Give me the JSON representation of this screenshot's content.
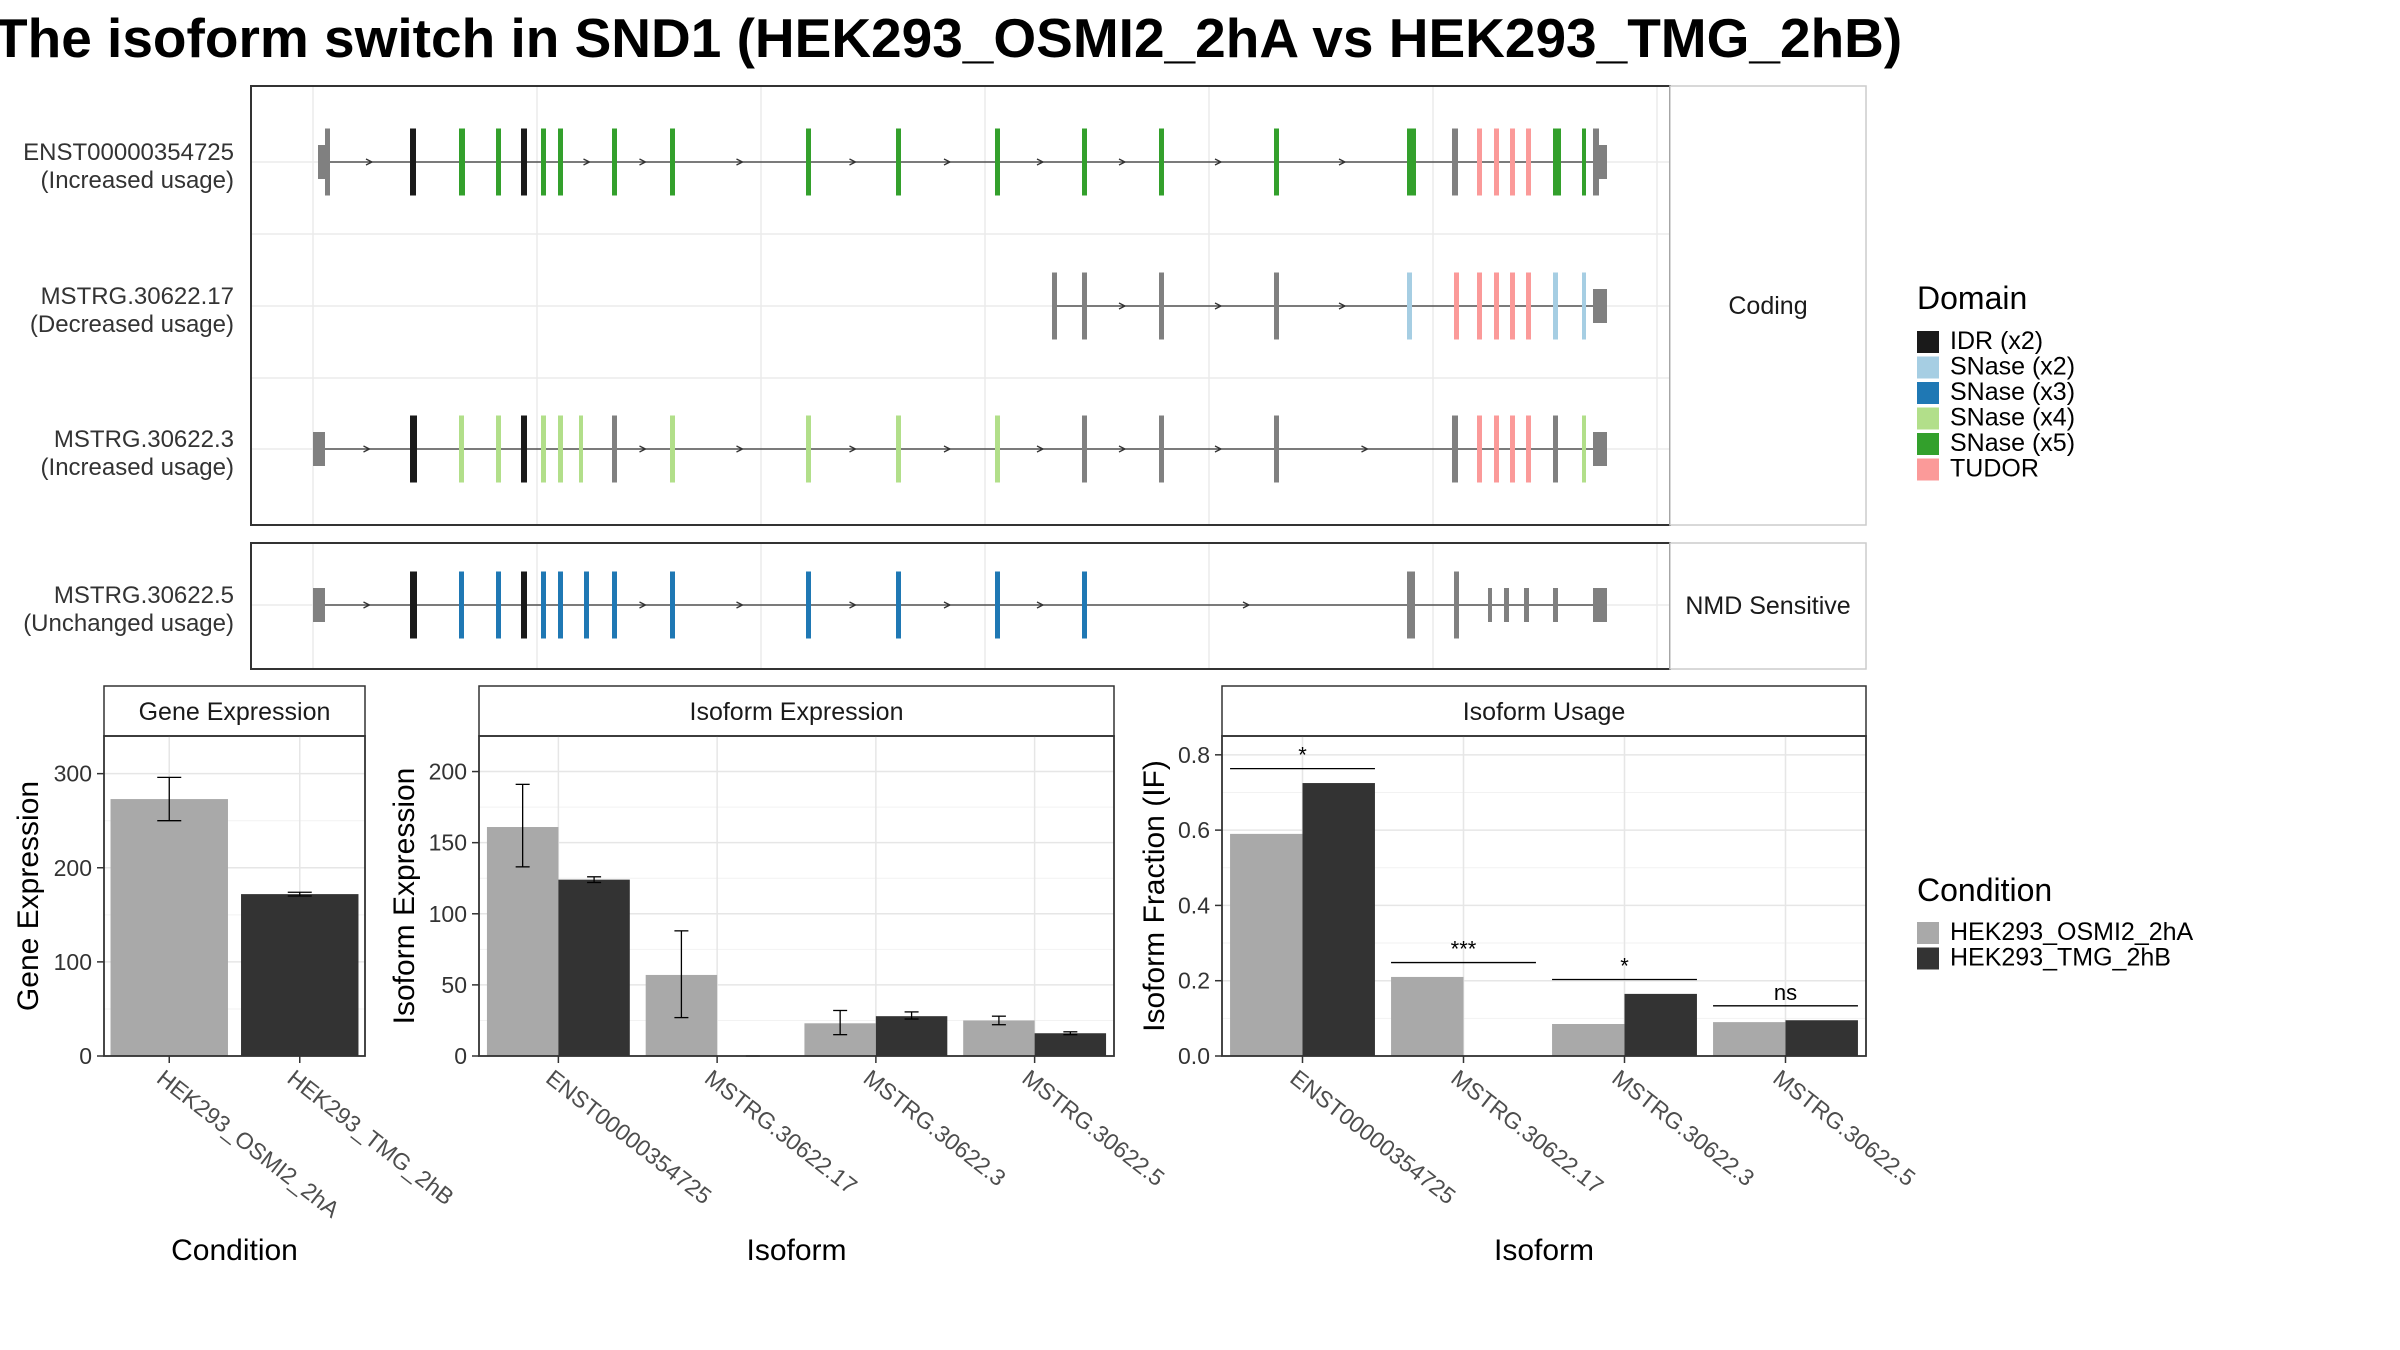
{
  "title": "The isoform switch in SND1 (HEK293_OSMI2_2hA vs HEK293_TMG_2hB)",
  "structure": {
    "isoforms": [
      {
        "id": "ENST00000354725",
        "usage": "(Increased usage)",
        "group": "Coding"
      },
      {
        "id": "MSTRG.30622.17",
        "usage": "(Decreased usage)",
        "group": "Coding"
      },
      {
        "id": "MSTRG.30622.3",
        "usage": "(Increased usage)",
        "group": "Coding"
      },
      {
        "id": "MSTRG.30622.5",
        "usage": "(Unchanged usage)",
        "group": "NMD Sensitive"
      }
    ],
    "strip_labels": [
      "Coding",
      "NMD Sensitive"
    ]
  },
  "legends": {
    "domain": {
      "title": "Domain",
      "items": [
        {
          "label": "IDR (x2)",
          "color": "#1a1a1a"
        },
        {
          "label": "SNase (x2)",
          "color": "#a6cee3"
        },
        {
          "label": "SNase (x3)",
          "color": "#1f78b4"
        },
        {
          "label": "SNase (x4)",
          "color": "#b2df8a"
        },
        {
          "label": "SNase (x5)",
          "color": "#33a02c"
        },
        {
          "label": "TUDOR",
          "color": "#fb9a99"
        }
      ]
    },
    "condition": {
      "title": "Condition",
      "items": [
        {
          "label": "HEK293_OSMI2_2hA",
          "color": "#a9a9a9"
        },
        {
          "label": "HEK293_TMG_2hB",
          "color": "#333333"
        }
      ]
    }
  },
  "chart_data": [
    {
      "type": "bar",
      "title": "Gene Expression",
      "xlabel": "Condition",
      "ylabel": "Gene Expression",
      "ylim": [
        0,
        340
      ],
      "yticks": [
        0,
        100,
        200,
        300
      ],
      "categories": [
        "HEK293_OSMI2_2hA",
        "HEK293_TMG_2hB"
      ],
      "values": [
        273,
        172
      ],
      "errors": [
        [
          250,
          296
        ],
        [
          170,
          174
        ]
      ],
      "colors": [
        "#a9a9a9",
        "#333333"
      ]
    },
    {
      "type": "bar",
      "title": "Isoform Expression",
      "xlabel": "Isoform",
      "ylabel": "Isoform Expression",
      "ylim": [
        0,
        225
      ],
      "yticks": [
        0,
        50,
        100,
        150,
        200
      ],
      "categories": [
        "ENST00000354725",
        "MSTRG.30622.17",
        "MSTRG.30622.3",
        "MSTRG.30622.5"
      ],
      "series": [
        {
          "name": "HEK293_OSMI2_2hA",
          "values": [
            161,
            57,
            23,
            25
          ],
          "errors": [
            [
              133,
              191
            ],
            [
              27,
              88
            ],
            [
              15,
              32
            ],
            [
              22,
              28
            ]
          ]
        },
        {
          "name": "HEK293_TMG_2hB",
          "values": [
            124,
            0,
            28,
            16
          ],
          "errors": [
            [
              122,
              126
            ],
            [
              0,
              0
            ],
            [
              26,
              31
            ],
            [
              15,
              17
            ]
          ]
        }
      ]
    },
    {
      "type": "bar",
      "title": "Isoform Usage",
      "xlabel": "Isoform",
      "ylabel": "Isoform Fraction (IF)",
      "ylim": [
        0,
        0.85
      ],
      "yticks": [
        "0.0",
        "0.2",
        "0.4",
        "0.6",
        "0.8"
      ],
      "categories": [
        "ENST00000354725",
        "MSTRG.30622.17",
        "MSTRG.30622.3",
        "MSTRG.30622.5"
      ],
      "series": [
        {
          "name": "HEK293_OSMI2_2hA",
          "values": [
            0.59,
            0.21,
            0.085,
            0.09
          ]
        },
        {
          "name": "HEK293_TMG_2hB",
          "values": [
            0.725,
            0.0,
            0.165,
            0.095
          ]
        }
      ],
      "significance": [
        "*",
        "***",
        "*",
        "ns"
      ]
    }
  ]
}
